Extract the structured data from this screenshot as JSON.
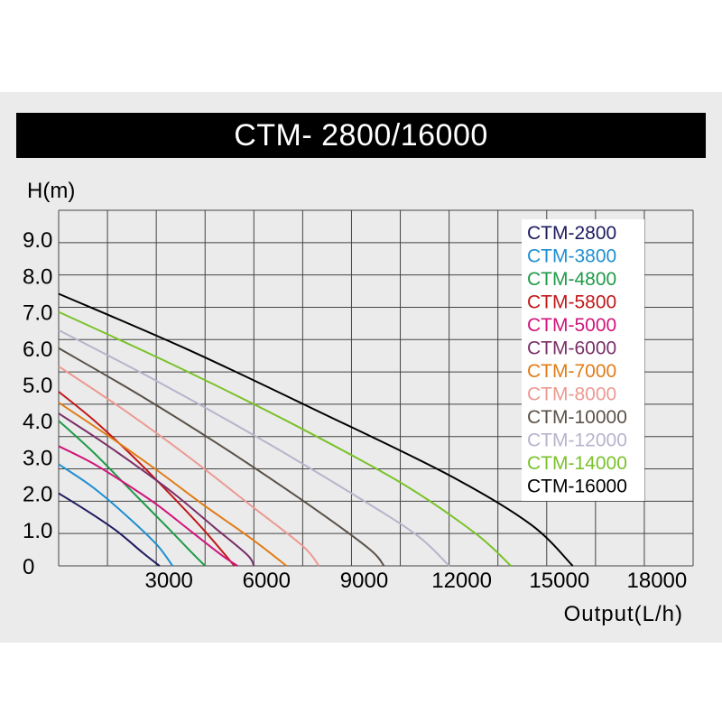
{
  "chart_data": {
    "type": "line",
    "title": "CTM- 2800/16000",
    "xlabel": "Output(L/h)",
    "ylabel": "H(m)",
    "xlim": [
      0,
      19500
    ],
    "ylim": [
      0,
      9.8
    ],
    "x_ticks": [
      {
        "value": 3000,
        "label": "3000"
      },
      {
        "value": 6000,
        "label": "6000"
      },
      {
        "value": 9000,
        "label": "9000"
      },
      {
        "value": 12000,
        "label": "12000"
      },
      {
        "value": 15000,
        "label": "15000"
      },
      {
        "value": 18000,
        "label": "18000"
      }
    ],
    "y_ticks": [
      {
        "value": 0,
        "label": "0"
      },
      {
        "value": 1,
        "label": "1.0"
      },
      {
        "value": 2,
        "label": "2.0"
      },
      {
        "value": 3,
        "label": "3.0"
      },
      {
        "value": 4,
        "label": "4.0"
      },
      {
        "value": 5,
        "label": "5.0"
      },
      {
        "value": 6,
        "label": "6.0"
      },
      {
        "value": 7,
        "label": "7.0"
      },
      {
        "value": 8,
        "label": "8.0"
      },
      {
        "value": 9,
        "label": "9.0"
      }
    ],
    "grid": true,
    "legend_position": "top-right",
    "series": [
      {
        "name": "CTM-2800",
        "color": "#1d1b5e",
        "points": [
          [
            0,
            2.0
          ],
          [
            900,
            1.5
          ],
          [
            1800,
            0.95
          ],
          [
            2600,
            0.35
          ],
          [
            3100,
            0
          ]
        ]
      },
      {
        "name": "CTM-3800",
        "color": "#1f8fd0",
        "points": [
          [
            0,
            2.8
          ],
          [
            1000,
            2.2
          ],
          [
            2000,
            1.45
          ],
          [
            3000,
            0.6
          ],
          [
            3500,
            0
          ]
        ]
      },
      {
        "name": "CTM-4800",
        "color": "#1f9a48",
        "points": [
          [
            0,
            4.0
          ],
          [
            1100,
            3.1
          ],
          [
            2200,
            2.1
          ],
          [
            3300,
            1.1
          ],
          [
            4000,
            0.45
          ],
          [
            4500,
            0
          ]
        ]
      },
      {
        "name": "CTM-5800",
        "color": "#c01818",
        "points": [
          [
            0,
            4.8
          ],
          [
            1100,
            4.0
          ],
          [
            2300,
            3.0
          ],
          [
            3400,
            2.0
          ],
          [
            4500,
            0.95
          ],
          [
            5400,
            0
          ]
        ]
      },
      {
        "name": "CTM-5000",
        "color": "#d0157b",
        "points": [
          [
            0,
            3.3
          ],
          [
            1000,
            2.85
          ],
          [
            2000,
            2.3
          ],
          [
            3000,
            1.7
          ],
          [
            4000,
            1.0
          ],
          [
            5000,
            0.3
          ],
          [
            5500,
            0
          ]
        ]
      },
      {
        "name": "CTM-6000",
        "color": "#7a2f67",
        "points": [
          [
            0,
            4.2
          ],
          [
            1200,
            3.5
          ],
          [
            2400,
            2.75
          ],
          [
            3600,
            1.95
          ],
          [
            4800,
            1.05
          ],
          [
            5800,
            0.3
          ],
          [
            6000,
            0
          ]
        ]
      },
      {
        "name": "CTM-7000",
        "color": "#e07c18",
        "points": [
          [
            0,
            4.5
          ],
          [
            1500,
            3.6
          ],
          [
            3000,
            2.65
          ],
          [
            4500,
            1.65
          ],
          [
            6000,
            0.7
          ],
          [
            7000,
            0
          ]
        ]
      },
      {
        "name": "CTM-8000",
        "color": "#ec9a92",
        "points": [
          [
            0,
            5.5
          ],
          [
            2000,
            4.3
          ],
          [
            4000,
            3.0
          ],
          [
            6000,
            1.6
          ],
          [
            7500,
            0.55
          ],
          [
            8000,
            0
          ]
        ]
      },
      {
        "name": "CTM-10000",
        "color": "#5a5148",
        "points": [
          [
            0,
            6.0
          ],
          [
            2500,
            4.7
          ],
          [
            5000,
            3.3
          ],
          [
            7500,
            1.8
          ],
          [
            9500,
            0.5
          ],
          [
            10000,
            0
          ]
        ]
      },
      {
        "name": "CTM-12000",
        "color": "#b7b4cc",
        "points": [
          [
            0,
            6.5
          ],
          [
            3000,
            5.1
          ],
          [
            6000,
            3.6
          ],
          [
            9000,
            2.0
          ],
          [
            11000,
            0.85
          ],
          [
            12000,
            0
          ]
        ]
      },
      {
        "name": "CTM-14000",
        "color": "#7ac22a",
        "points": [
          [
            0,
            7.0
          ],
          [
            3500,
            5.55
          ],
          [
            7000,
            4.0
          ],
          [
            10500,
            2.3
          ],
          [
            12800,
            0.9
          ],
          [
            13900,
            0
          ]
        ]
      },
      {
        "name": "CTM-16000",
        "color": "#000000",
        "points": [
          [
            0,
            7.5
          ],
          [
            4000,
            5.95
          ],
          [
            8000,
            4.25
          ],
          [
            12000,
            2.5
          ],
          [
            14500,
            1.15
          ],
          [
            15800,
            0
          ]
        ]
      }
    ]
  }
}
